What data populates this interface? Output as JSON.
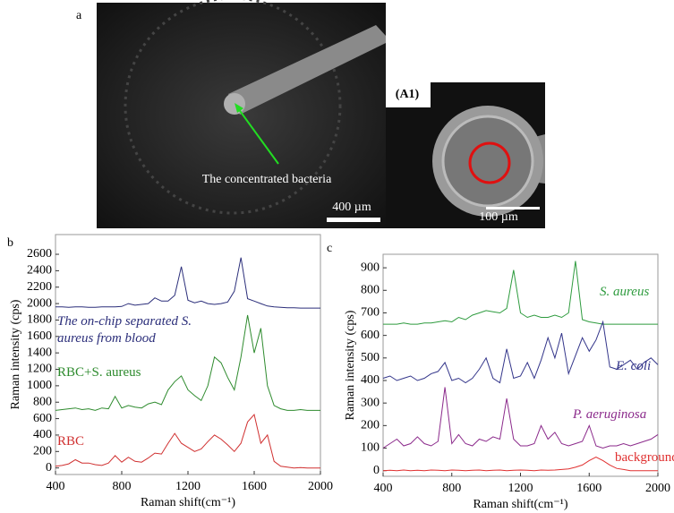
{
  "figure": {
    "panel_a": "a",
    "image_caption": "The concentrated bacteria",
    "scale_a": "400 µm",
    "inset_label": "(A1)",
    "scale_a1": "100 µm"
  },
  "chart_data": [
    {
      "type": "line",
      "panel": "b",
      "x_label": "Raman shift(cm⁻¹)",
      "y_label": "Raman  intensity (cps)",
      "xlim": [
        400,
        2000
      ],
      "xticks": [
        400,
        800,
        1200,
        1600,
        2000
      ],
      "ylim": [
        -80,
        2840
      ],
      "yticks": [
        0,
        200,
        400,
        600,
        800,
        1000,
        1200,
        1400,
        1600,
        1800,
        2000,
        2200,
        2400,
        2600
      ],
      "x": [
        400,
        440,
        480,
        520,
        560,
        600,
        640,
        680,
        720,
        760,
        800,
        840,
        880,
        920,
        960,
        1000,
        1040,
        1080,
        1120,
        1160,
        1200,
        1240,
        1280,
        1320,
        1360,
        1400,
        1440,
        1480,
        1520,
        1560,
        1600,
        1640,
        1680,
        1720,
        1760,
        1800,
        1840,
        1880,
        1920,
        1960,
        2000
      ],
      "series": [
        {
          "name": "The on-chip separated S. aureus from blood",
          "color": "#2b2e7a",
          "values": [
            1960,
            1960,
            1955,
            1960,
            1960,
            1955,
            1955,
            1960,
            1960,
            1960,
            1965,
            2000,
            1980,
            1990,
            2000,
            2070,
            2030,
            2030,
            2100,
            2450,
            2040,
            2010,
            2030,
            2000,
            1990,
            2000,
            2020,
            2150,
            2560,
            2060,
            2030,
            2000,
            1970,
            1960,
            1955,
            1950,
            1950,
            1945,
            1945,
            1945,
            1945
          ]
        },
        {
          "name": "RBC+S. aureus",
          "color": "#2e8b2e",
          "values": [
            700,
            710,
            720,
            730,
            710,
            720,
            700,
            730,
            720,
            870,
            730,
            760,
            740,
            730,
            780,
            800,
            770,
            950,
            1050,
            1120,
            950,
            880,
            820,
            1000,
            1350,
            1280,
            1100,
            950,
            1350,
            1860,
            1400,
            1700,
            1000,
            760,
            720,
            700,
            700,
            710,
            700,
            700,
            700
          ]
        },
        {
          "name": "RBC",
          "color": "#d03030",
          "values": [
            20,
            30,
            50,
            100,
            60,
            60,
            40,
            30,
            60,
            150,
            70,
            130,
            80,
            70,
            120,
            180,
            170,
            300,
            420,
            300,
            250,
            200,
            230,
            320,
            400,
            350,
            280,
            200,
            300,
            560,
            650,
            300,
            400,
            80,
            20,
            10,
            0,
            5,
            0,
            0,
            0
          ]
        }
      ]
    },
    {
      "type": "line",
      "panel": "c",
      "x_label": "Raman shift(cm⁻¹)",
      "y_label": "Raman  intensity (cps)",
      "xlim": [
        400,
        2000
      ],
      "xticks": [
        400,
        800,
        1200,
        1600,
        2000
      ],
      "ylim": [
        -25,
        960
      ],
      "yticks": [
        0,
        100,
        200,
        300,
        400,
        500,
        600,
        700,
        800,
        900
      ],
      "x": [
        400,
        440,
        480,
        520,
        560,
        600,
        640,
        680,
        720,
        760,
        800,
        840,
        880,
        920,
        960,
        1000,
        1040,
        1080,
        1120,
        1160,
        1200,
        1240,
        1280,
        1320,
        1360,
        1400,
        1440,
        1480,
        1520,
        1560,
        1600,
        1640,
        1680,
        1720,
        1760,
        1800,
        1840,
        1880,
        1920,
        1960,
        2000
      ],
      "series": [
        {
          "name": "S. aureus",
          "color": "#2e9b3e",
          "values": [
            650,
            650,
            650,
            655,
            650,
            650,
            655,
            655,
            660,
            665,
            660,
            680,
            670,
            690,
            700,
            710,
            705,
            700,
            720,
            890,
            700,
            680,
            690,
            680,
            680,
            690,
            680,
            700,
            930,
            670,
            660,
            655,
            650,
            650,
            650,
            650,
            650,
            650,
            650,
            650,
            650
          ]
        },
        {
          "name": "E. coli",
          "color": "#33358a",
          "values": [
            410,
            420,
            400,
            410,
            420,
            400,
            410,
            430,
            440,
            480,
            400,
            410,
            390,
            410,
            450,
            500,
            410,
            390,
            540,
            410,
            420,
            480,
            410,
            490,
            590,
            500,
            610,
            430,
            510,
            590,
            530,
            580,
            660,
            460,
            450,
            470,
            490,
            450,
            480,
            500,
            470
          ]
        },
        {
          "name": "P. aeruginosa",
          "color": "#8b2a8b",
          "values": [
            100,
            120,
            140,
            110,
            120,
            150,
            120,
            110,
            130,
            370,
            120,
            160,
            120,
            110,
            140,
            130,
            150,
            140,
            320,
            140,
            110,
            110,
            120,
            200,
            140,
            170,
            120,
            110,
            120,
            130,
            200,
            110,
            100,
            110,
            110,
            120,
            110,
            120,
            130,
            140,
            160
          ]
        },
        {
          "name": "background",
          "color": "#e03030",
          "values": [
            0,
            2,
            0,
            3,
            0,
            2,
            0,
            3,
            2,
            0,
            3,
            2,
            0,
            2,
            3,
            0,
            2,
            3,
            0,
            2,
            3,
            2,
            0,
            3,
            2,
            3,
            5,
            8,
            15,
            25,
            45,
            60,
            45,
            25,
            10,
            5,
            0,
            0,
            0,
            0,
            0
          ]
        }
      ]
    }
  ]
}
